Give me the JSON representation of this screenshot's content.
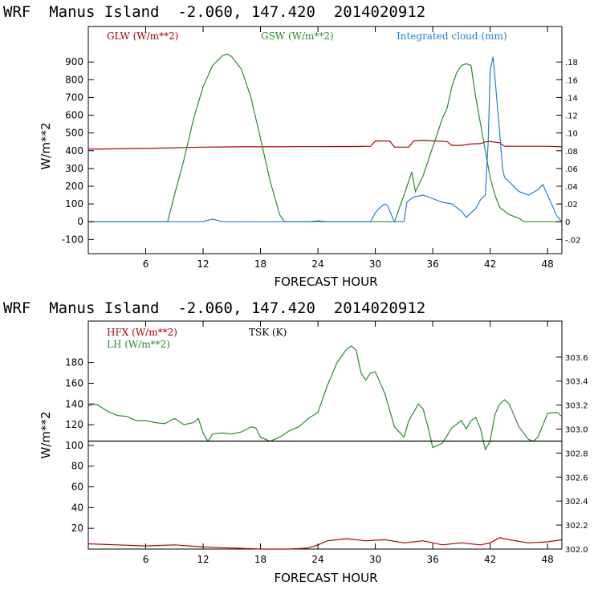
{
  "chart_data": [
    {
      "type": "line",
      "title": "WRF  Manus Island  -2.060, 147.420  2014020912",
      "xlabel": "FORECAST HOUR",
      "ylabel": "W/m**2",
      "xlim": [
        0,
        49.5
      ],
      "ylim": [
        -180,
        1100
      ],
      "x_ticks": [
        6,
        12,
        18,
        24,
        30,
        36,
        42,
        48
      ],
      "y_ticks": [
        -100,
        0,
        100,
        200,
        300,
        400,
        500,
        600,
        700,
        800,
        900
      ],
      "y2lim": [
        -0.036,
        0.22
      ],
      "y2_ticks": [
        "-.02",
        "0",
        ".02",
        ".04",
        ".06",
        ".08",
        ".10",
        ".12",
        ".14",
        ".16",
        ".18"
      ],
      "y2_tick_values": [
        -0.02,
        0,
        0.02,
        0.04,
        0.06,
        0.08,
        0.1,
        0.12,
        0.14,
        0.16,
        0.18
      ],
      "grid": false,
      "legend": "top",
      "series": [
        {
          "name": "GLW (W/m**2)",
          "color": "#b00000",
          "axis": "left",
          "x": [
            0,
            2,
            4,
            6,
            8,
            10,
            12,
            14,
            16,
            18,
            20,
            22,
            24,
            26,
            28,
            29.5,
            30,
            31.5,
            32,
            33.5,
            34,
            35,
            36,
            37.5,
            38,
            39,
            40,
            41,
            41.5,
            42,
            43,
            43.5,
            44,
            46,
            48,
            49.5
          ],
          "y": [
            410,
            410,
            412,
            413,
            415,
            418,
            420,
            421,
            422,
            422,
            422,
            423,
            423,
            424,
            424,
            425,
            455,
            455,
            420,
            420,
            455,
            458,
            455,
            452,
            430,
            430,
            438,
            440,
            450,
            452,
            445,
            425,
            425,
            425,
            425,
            422
          ]
        },
        {
          "name": "GSW (W/m**2)",
          "color": "#2a8a2a",
          "axis": "left",
          "x": [
            0,
            8,
            8.3,
            9,
            10,
            11,
            12,
            13,
            14,
            14.5,
            15,
            16,
            17,
            18,
            19,
            20,
            20.5,
            21,
            30,
            32,
            33,
            33.5,
            33.8,
            34.2,
            35,
            36,
            37,
            37.5,
            38,
            38.5,
            39,
            39.5,
            40,
            40.5,
            41,
            41.5,
            42,
            42.5,
            43,
            44,
            45,
            45.5,
            49.5
          ],
          "y": [
            0,
            0,
            0,
            150,
            350,
            580,
            760,
            880,
            935,
            945,
            930,
            860,
            700,
            470,
            230,
            40,
            0,
            0,
            0,
            0,
            150,
            230,
            280,
            170,
            260,
            420,
            580,
            640,
            760,
            840,
            880,
            890,
            880,
            700,
            550,
            400,
            250,
            150,
            80,
            40,
            20,
            0,
            0
          ]
        },
        {
          "name": "Integrated cloud (mm)",
          "color": "#1f7fd6",
          "axis": "right",
          "x": [
            0,
            12,
            13,
            14,
            20,
            23,
            24,
            25,
            29.5,
            30,
            30.5,
            31,
            31.3,
            31.5,
            32,
            33,
            33.3,
            34,
            35,
            36,
            37,
            38,
            39,
            39.5,
            40,
            40.5,
            41,
            41.5,
            41.8,
            42,
            42.3,
            42.6,
            43,
            43.3,
            43.5,
            44,
            45,
            46,
            47,
            47.5,
            48,
            49,
            49.5
          ],
          "y": [
            0,
            0,
            0.003,
            0,
            0,
            0,
            0.001,
            0,
            0,
            0.01,
            0.016,
            0.02,
            0.018,
            0.012,
            0,
            0,
            0.022,
            0.028,
            0.03,
            0.026,
            0.022,
            0.02,
            0.012,
            0.005,
            0.01,
            0.015,
            0.025,
            0.03,
            0.09,
            0.17,
            0.186,
            0.15,
            0.1,
            0.06,
            0.05,
            0.045,
            0.034,
            0.03,
            0.036,
            0.042,
            0.03,
            0.006,
            0
          ]
        }
      ]
    },
    {
      "type": "line",
      "title": "WRF  Manus Island  -2.060, 147.420  2014020912",
      "xlabel": "FORECAST HOUR",
      "ylabel": "W/m**2",
      "xlim": [
        0,
        49.5
      ],
      "ylim": [
        0,
        220
      ],
      "x_ticks": [
        6,
        12,
        18,
        24,
        30,
        36,
        42,
        48
      ],
      "y_ticks": [
        20,
        40,
        60,
        80,
        100,
        120,
        140,
        160,
        180
      ],
      "y2lim": [
        302.0,
        303.9
      ],
      "y2_ticks": [
        "302.0",
        "302.2",
        "302.4",
        "302.6",
        "302.8",
        "303.0",
        "303.2",
        "303.4",
        "303.6"
      ],
      "y2_tick_values": [
        302.0,
        302.2,
        302.4,
        302.6,
        302.8,
        303.0,
        303.2,
        303.4,
        303.6
      ],
      "grid": false,
      "legend": "top-left",
      "series": [
        {
          "name": "HFX (W/m**2)",
          "color": "#b00000",
          "axis": "left",
          "x": [
            0,
            3,
            6,
            9,
            12,
            15,
            18,
            21,
            23,
            24,
            25,
            27,
            29,
            31,
            33,
            35,
            37,
            39,
            41,
            42,
            43,
            44,
            46,
            48,
            49.5
          ],
          "y": [
            5,
            4,
            3,
            4,
            2,
            1,
            0,
            0,
            1,
            4,
            8,
            10,
            8,
            9,
            6,
            8,
            4,
            6,
            4,
            6,
            11,
            9,
            6,
            7,
            9
          ]
        },
        {
          "name": "LH (W/m**2)",
          "color": "#2a8a2a",
          "axis": "left",
          "x": [
            0,
            0.5,
            1,
            2,
            3,
            4,
            5,
            6,
            7,
            8,
            9,
            10,
            11,
            11.5,
            12,
            12.5,
            13,
            14,
            15,
            16,
            17,
            17.5,
            18,
            19,
            20,
            21,
            22,
            23,
            24,
            25,
            26,
            27,
            27.5,
            28,
            28.5,
            29,
            29.5,
            30,
            31,
            32,
            33,
            33.5,
            34,
            34.5,
            35,
            35.5,
            36,
            37,
            38,
            39,
            39.5,
            40,
            40.5,
            41,
            41.5,
            42,
            42.5,
            43,
            43.5,
            44,
            45,
            46,
            46.5,
            47,
            48,
            49,
            49.5
          ],
          "y": [
            138,
            140,
            139,
            133,
            129,
            128,
            124,
            124,
            122,
            121,
            126,
            120,
            122,
            126,
            112,
            104,
            111,
            112,
            111,
            113,
            118,
            117,
            108,
            104,
            108,
            114,
            118,
            126,
            132,
            158,
            180,
            193,
            196,
            192,
            170,
            163,
            170,
            171,
            150,
            118,
            108,
            124,
            132,
            140,
            135,
            118,
            98,
            102,
            117,
            124,
            116,
            124,
            127,
            116,
            96,
            104,
            130,
            140,
            144,
            140,
            118,
            106,
            104,
            108,
            131,
            132,
            128
          ]
        },
        {
          "name": "TSK (K)",
          "color": "#000000",
          "axis": "right",
          "x": [
            0,
            49.5
          ],
          "y": [
            302.9,
            302.9
          ]
        }
      ]
    }
  ]
}
